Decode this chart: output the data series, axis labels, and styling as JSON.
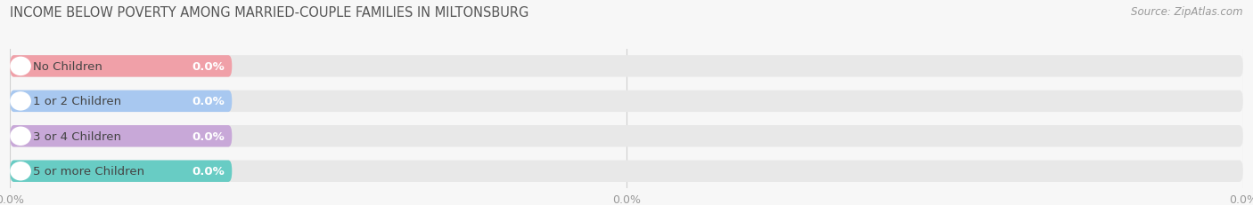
{
  "title": "INCOME BELOW POVERTY AMONG MARRIED-COUPLE FAMILIES IN MILTONSBURG",
  "source": "Source: ZipAtlas.com",
  "categories": [
    "No Children",
    "1 or 2 Children",
    "3 or 4 Children",
    "5 or more Children"
  ],
  "values": [
    0.0,
    0.0,
    0.0,
    0.0
  ],
  "bar_colors": [
    "#f0a0a8",
    "#a8c8f0",
    "#c8a8d8",
    "#68ccc4"
  ],
  "background_color": "#f7f7f7",
  "bar_bg_color": "#e8e8e8",
  "title_fontsize": 10.5,
  "source_fontsize": 8.5,
  "label_fontsize": 9.5,
  "value_fontsize": 9.5,
  "tick_fontsize": 9,
  "figsize": [
    14.06,
    2.32
  ],
  "dpi": 100
}
